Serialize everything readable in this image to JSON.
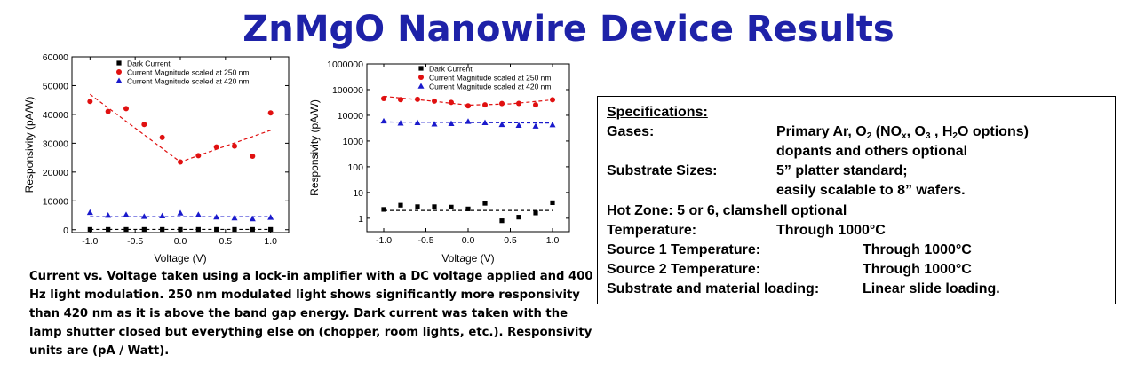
{
  "title": "ZnMgO Nanowire Device Results",
  "caption": "Current vs. Voltage taken using a lock-in amplifier with a DC voltage applied and 400 Hz light modulation.  250 nm modulated light shows significantly more responsivity than 420 nm as it is above the band gap energy.  Dark current was taken with the lamp shutter closed but everything else on (chopper, room lights, etc.).  Responsivity units are (pA / Watt).",
  "specs": {
    "heading": "Specifications:",
    "gases_label": "Gases:",
    "gases_line1_parts": [
      "Primary Ar, O",
      "2",
      " (NO",
      "x",
      ", O",
      "3",
      " , H",
      "2",
      "O options)"
    ],
    "gases_line2": "dopants and others optional",
    "substrate_label": "Substrate Sizes:",
    "substrate_line1": "5” platter standard;",
    "substrate_line2": "easily scalable to 8” wafers.",
    "hotzone": "Hot Zone:  5 or 6, clamshell optional",
    "temperature_label": "Temperature:",
    "temperature_value": "Through 1000°C",
    "source1_label": "Source 1 Temperature:",
    "source1_value": "Through 1000°C",
    "source2_label": "Source 2 Temperature:",
    "source2_value": "Through 1000°C",
    "loading_label": "Substrate and material loading:",
    "loading_value": "Linear slide loading."
  },
  "chart_data": [
    {
      "type": "scatter",
      "xlabel": "Voltage (V)",
      "ylabel": "Responsivity (pA/W)",
      "xlim": [
        -1.2,
        1.2
      ],
      "ylim": [
        -1000,
        60000
      ],
      "xticks": [
        "-1.0",
        "-0.5",
        "0.0",
        "0.5",
        "1.0"
      ],
      "xtick_values": [
        -1.0,
        -0.5,
        0.0,
        0.5,
        1.0
      ],
      "yticks": [
        "0",
        "10000",
        "20000",
        "30000",
        "40000",
        "50000",
        "60000"
      ],
      "ytick_values": [
        0,
        10000,
        20000,
        30000,
        40000,
        50000,
        60000
      ],
      "legend_position": "top-right",
      "x": [
        -1.0,
        -0.8,
        -0.6,
        -0.4,
        -0.2,
        0.0,
        0.2,
        0.4,
        0.6,
        0.8,
        1.0
      ],
      "series": [
        {
          "name": "Dark Current",
          "marker": "square",
          "color": "#000000",
          "values": [
            100,
            100,
            100,
            100,
            100,
            100,
            100,
            100,
            100,
            100,
            100
          ]
        },
        {
          "name": "Current Magnitude scaled at 250 nm",
          "marker": "circle",
          "color": "#e01010",
          "values": [
            44500,
            41000,
            42000,
            36500,
            32000,
            23500,
            25700,
            28700,
            29000,
            25500,
            40500
          ]
        },
        {
          "name": "Current Magnitude scaled at 420 nm",
          "marker": "triangle",
          "color": "#1a1acc",
          "values": [
            6000,
            5000,
            5200,
            4600,
            4800,
            5800,
            5200,
            4400,
            4100,
            3800,
            4300
          ]
        }
      ],
      "fit_lines": [
        {
          "color": "#e01010",
          "points": [
            [
              -1.0,
              47000
            ],
            [
              0.0,
              23500
            ],
            [
              1.0,
              34500
            ]
          ]
        },
        {
          "color": "#1a1acc",
          "points": [
            [
              -1.0,
              4500
            ],
            [
              1.0,
              4500
            ]
          ]
        },
        {
          "color": "#000000",
          "points": [
            [
              -1.0,
              100
            ],
            [
              1.0,
              100
            ]
          ]
        }
      ]
    },
    {
      "type": "scatter",
      "xlabel": "Voltage (V)",
      "ylabel": "Responsivity (pA/W)",
      "yscale": "log",
      "xlim": [
        -1.2,
        1.2
      ],
      "ylim": [
        0.3,
        1000000
      ],
      "xticks": [
        "-1.0",
        "-0.5",
        "0.0",
        "0.5",
        "1.0"
      ],
      "xtick_values": [
        -1.0,
        -0.5,
        0.0,
        0.5,
        1.0
      ],
      "yticks": [
        "1",
        "10",
        "100",
        "1000",
        "10000",
        "100000",
        "1000000"
      ],
      "ytick_values": [
        1,
        10,
        100,
        1000,
        10000,
        100000,
        1000000
      ],
      "legend_position": "top-right",
      "x": [
        -1.0,
        -0.8,
        -0.6,
        -0.4,
        -0.2,
        0.0,
        0.2,
        0.4,
        0.6,
        0.8,
        1.0
      ],
      "series": [
        {
          "name": "Dark Current",
          "marker": "square",
          "color": "#000000",
          "values": [
            2.2,
            3.2,
            2.8,
            2.8,
            2.7,
            2.3,
            3.8,
            0.8,
            1.1,
            1.6,
            4.0
          ]
        },
        {
          "name": "Current Magnitude scaled at 250 nm",
          "marker": "circle",
          "color": "#e01010",
          "values": [
            45000,
            41000,
            42000,
            36000,
            32000,
            23500,
            25700,
            28700,
            29000,
            25500,
            40500
          ]
        },
        {
          "name": "Current Magnitude scaled at 420 nm",
          "marker": "triangle",
          "color": "#1a1acc",
          "values": [
            6000,
            5000,
            5200,
            4600,
            4800,
            5800,
            5200,
            4400,
            4100,
            3800,
            4300
          ]
        }
      ],
      "fit_lines": [
        {
          "color": "#e01010",
          "points": [
            [
              -1.0,
              55000
            ],
            [
              -0.5,
              38000
            ],
            [
              0.0,
              25000
            ],
            [
              0.5,
              28000
            ],
            [
              1.0,
              40000
            ]
          ]
        },
        {
          "color": "#1a1acc",
          "points": [
            [
              -1.0,
              5500
            ],
            [
              1.0,
              5000
            ]
          ]
        },
        {
          "color": "#000000",
          "points": [
            [
              -1.0,
              2.0
            ],
            [
              1.0,
              2.0
            ]
          ]
        }
      ]
    }
  ]
}
